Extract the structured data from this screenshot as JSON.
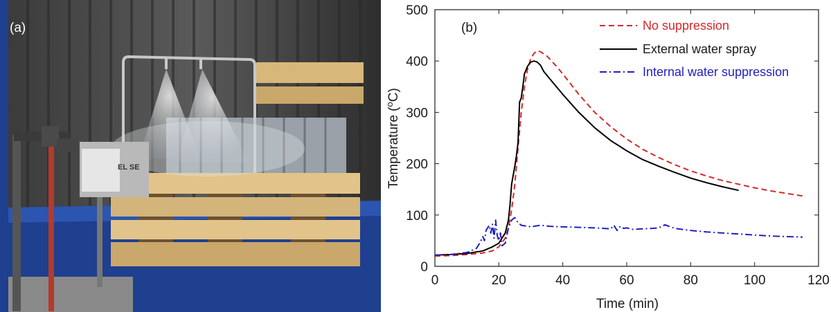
{
  "photo_panel": {
    "label": "(a)",
    "sprinkler_box_text": "EL SE"
  },
  "colors": {
    "no_suppression": "#d62728",
    "external_water_spray": "#000000",
    "internal_water_suppression": "#1f1fbf",
    "container_blue": "#1f3f8f"
  },
  "chart_data": {
    "type": "line",
    "panel_label": "(b)",
    "xlabel": "Time (min)",
    "ylabel_parts": [
      "Temperature (",
      "o",
      "C)"
    ],
    "xlim": [
      0,
      120
    ],
    "ylim": [
      0,
      500
    ],
    "xticks": [
      0,
      20,
      40,
      60,
      80,
      100,
      120
    ],
    "yticks": [
      0,
      100,
      200,
      300,
      400,
      500
    ],
    "grid": false,
    "legend_position": "top-right",
    "series": [
      {
        "name": "No suppression",
        "style": "dashed",
        "color": "#d62728",
        "points": [
          [
            0,
            20
          ],
          [
            5,
            21
          ],
          [
            10,
            23
          ],
          [
            15,
            26
          ],
          [
            18,
            30
          ],
          [
            20,
            38
          ],
          [
            22,
            55
          ],
          [
            23,
            75
          ],
          [
            24,
            110
          ],
          [
            25,
            160
          ],
          [
            26,
            230
          ],
          [
            27,
            300
          ],
          [
            28,
            350
          ],
          [
            29,
            385
          ],
          [
            30,
            405
          ],
          [
            31,
            415
          ],
          [
            32,
            420
          ],
          [
            33,
            418
          ],
          [
            35,
            410
          ],
          [
            38,
            390
          ],
          [
            40,
            375
          ],
          [
            45,
            335
          ],
          [
            50,
            300
          ],
          [
            55,
            272
          ],
          [
            60,
            248
          ],
          [
            65,
            228
          ],
          [
            70,
            212
          ],
          [
            75,
            198
          ],
          [
            80,
            186
          ],
          [
            85,
            176
          ],
          [
            90,
            167
          ],
          [
            95,
            160
          ],
          [
            100,
            153
          ],
          [
            105,
            147
          ],
          [
            110,
            142
          ],
          [
            115,
            137
          ]
        ]
      },
      {
        "name": "External water spray",
        "style": "solid",
        "color": "#000000",
        "points": [
          [
            0,
            22
          ],
          [
            5,
            23
          ],
          [
            10,
            25
          ],
          [
            15,
            30
          ],
          [
            18,
            38
          ],
          [
            20,
            45
          ],
          [
            21,
            55
          ],
          [
            22,
            65
          ],
          [
            23,
            90
          ],
          [
            23.5,
            120
          ],
          [
            24,
            160
          ],
          [
            25,
            195
          ],
          [
            25.5,
            215
          ],
          [
            26,
            240
          ],
          [
            26.5,
            320
          ],
          [
            27,
            328
          ],
          [
            27.5,
            350
          ],
          [
            28,
            375
          ],
          [
            29,
            390
          ],
          [
            30,
            398
          ],
          [
            31,
            400
          ],
          [
            32,
            398
          ],
          [
            33,
            392
          ],
          [
            34,
            380
          ],
          [
            36,
            365
          ],
          [
            38,
            350
          ],
          [
            40,
            335
          ],
          [
            45,
            300
          ],
          [
            50,
            270
          ],
          [
            55,
            245
          ],
          [
            60,
            225
          ],
          [
            65,
            208
          ],
          [
            70,
            195
          ],
          [
            75,
            183
          ],
          [
            80,
            172
          ],
          [
            85,
            163
          ],
          [
            90,
            155
          ],
          [
            95,
            148
          ]
        ]
      },
      {
        "name": "Internal water suppression",
        "style": "dashdot",
        "color": "#1f1fbf",
        "points": [
          [
            0,
            22
          ],
          [
            5,
            23
          ],
          [
            10,
            27
          ],
          [
            13,
            35
          ],
          [
            14,
            45
          ],
          [
            15,
            58
          ],
          [
            15.5,
            50
          ],
          [
            16,
            70
          ],
          [
            17,
            80
          ],
          [
            17.5,
            65
          ],
          [
            18,
            82
          ],
          [
            18.5,
            55
          ],
          [
            19,
            90
          ],
          [
            19.5,
            60
          ],
          [
            20,
            50
          ],
          [
            20.5,
            65
          ],
          [
            21,
            40
          ],
          [
            22,
            45
          ],
          [
            23,
            75
          ],
          [
            24,
            90
          ],
          [
            25,
            95
          ],
          [
            26,
            85
          ],
          [
            27,
            80
          ],
          [
            30,
            77
          ],
          [
            33,
            80
          ],
          [
            36,
            78
          ],
          [
            40,
            77
          ],
          [
            45,
            76
          ],
          [
            50,
            75
          ],
          [
            55,
            73
          ],
          [
            56,
            80
          ],
          [
            57,
            70
          ],
          [
            58,
            78
          ],
          [
            59,
            74
          ],
          [
            60,
            75
          ],
          [
            62,
            72
          ],
          [
            65,
            73
          ],
          [
            68,
            74
          ],
          [
            70,
            75
          ],
          [
            72,
            81
          ],
          [
            74,
            76
          ],
          [
            76,
            73
          ],
          [
            80,
            70
          ],
          [
            85,
            67
          ],
          [
            90,
            65
          ],
          [
            95,
            63
          ],
          [
            100,
            61
          ],
          [
            105,
            59
          ],
          [
            110,
            58
          ],
          [
            115,
            57
          ]
        ]
      }
    ]
  }
}
